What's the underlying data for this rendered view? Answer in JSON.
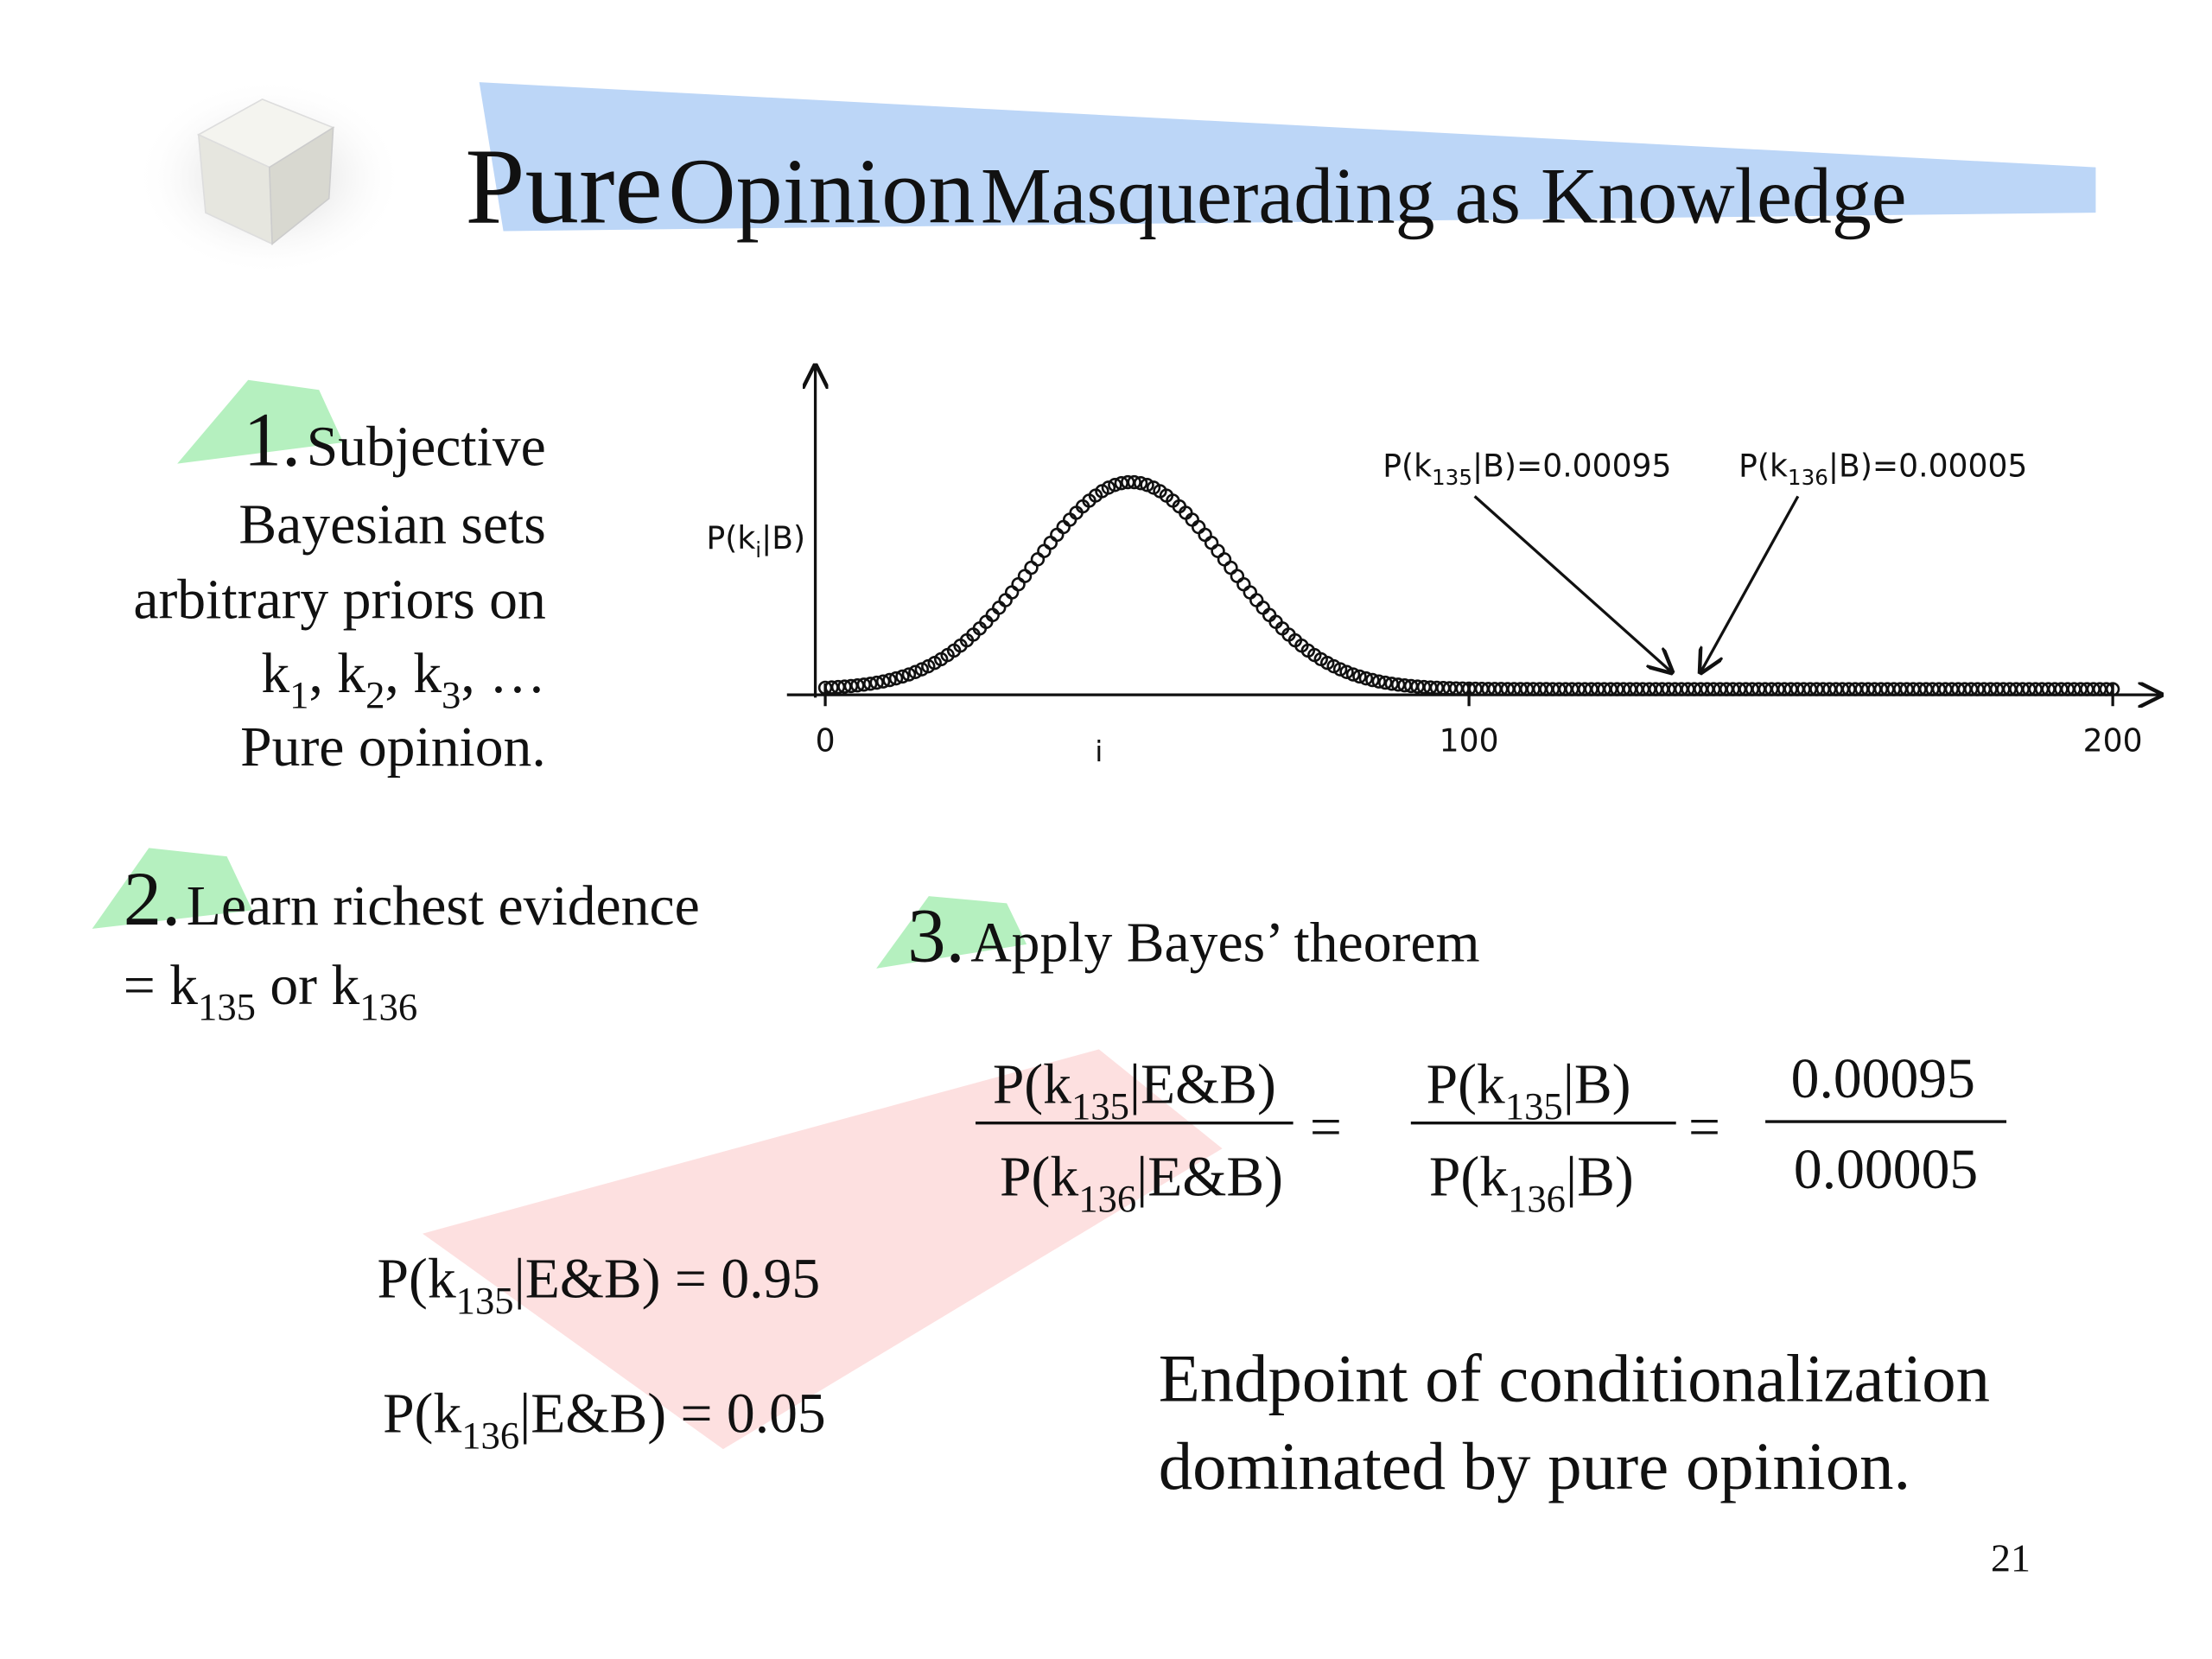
{
  "header": {
    "title_pure": "Pure",
    "title_opinion": "Opinion",
    "title_rest": "Masquerading as Knowledge"
  },
  "step1": {
    "number": "1.",
    "lines": [
      "Subjective",
      "Bayesian sets",
      "arbitrary priors on"
    ],
    "k_line": [
      "k",
      "1",
      ", k",
      "2",
      ", k",
      "3",
      ", …"
    ],
    "last_line": "Pure opinion."
  },
  "plot": {
    "y_label": [
      "P(k",
      "i",
      "|B)"
    ],
    "x_label": "i",
    "xlim": [
      0,
      200
    ],
    "xticks": [
      0,
      100,
      200
    ],
    "annotations": [
      {
        "text": [
          "P(k",
          "135",
          "|B)=0.00095"
        ],
        "x": 135
      },
      {
        "text": [
          "P(k",
          "136",
          "|B)=0.00005"
        ],
        "x": 136
      }
    ]
  },
  "step2": {
    "number": "2.",
    "line1": "Learn richest evidence",
    "line2": [
      "= k",
      "135",
      " or k",
      "136"
    ]
  },
  "step3": {
    "number": "3.",
    "line1": "Apply Bayes’ theorem"
  },
  "equation": {
    "frac1": {
      "num": [
        "P(k",
        "135",
        "|E&B)"
      ],
      "den": [
        "P(k",
        "136",
        "|E&B)"
      ]
    },
    "eq1": "=",
    "frac2": {
      "num": [
        "P(k",
        "135",
        "|B)"
      ],
      "den": [
        "P(k",
        "136",
        "|B)"
      ]
    },
    "eq2": "=",
    "frac3": {
      "num": "0.00095",
      "den": "0.00005"
    }
  },
  "results": [
    [
      "P(k",
      "135",
      "|E&B) = 0.95"
    ],
    [
      "P(k",
      "136",
      "|E&B) = 0.05"
    ]
  ],
  "conclusion": [
    "Endpoint of conditionalization",
    "dominated by pure opinion."
  ],
  "page_number": "21"
}
